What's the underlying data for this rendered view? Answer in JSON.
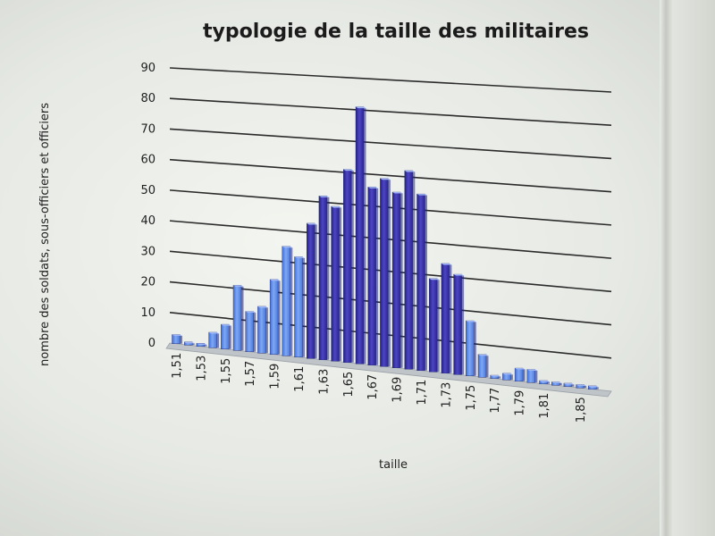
{
  "chart_data": {
    "type": "bar",
    "title": "typologie de la taille des militaires",
    "xlabel": "taille",
    "ylabel": "nombre des soldats, sous-officiers et officiers",
    "ylim": [
      0,
      90
    ],
    "yticks": [
      0,
      10,
      20,
      30,
      40,
      50,
      60,
      70,
      80,
      90
    ],
    "grid": true,
    "categories": [
      "1,51",
      "1,52",
      "1,53",
      "1,54",
      "1,55",
      "1,56",
      "1,57",
      "1,58",
      "1,59",
      "1,60",
      "1,61",
      "1,62",
      "1,63",
      "1,64",
      "1,65",
      "1,66",
      "1,67",
      "1,68",
      "1,69",
      "1,70",
      "1,71",
      "1,72",
      "1,73",
      "1,74",
      "1,75",
      "1,76",
      "1,77",
      "1,78",
      "1,79",
      "1,80",
      "1,81",
      "1,82",
      "1,83",
      "1,84",
      "1,85"
    ],
    "visible_tick_labels": [
      "1,51",
      "1,53",
      "1,55",
      "1,57",
      "1,59",
      "1,61",
      "1,63",
      "1,65",
      "1,67",
      "1,69",
      "1,71",
      "1,73",
      "1,75",
      "1,77",
      "1,79",
      "1,81",
      "1,85"
    ],
    "values": [
      3,
      1,
      1,
      5,
      8,
      21,
      13,
      15,
      24,
      35,
      32,
      43,
      52,
      49,
      61,
      81,
      56,
      59,
      55,
      62,
      55,
      29,
      34,
      31,
      17,
      7,
      1,
      2,
      4,
      4,
      1,
      1,
      1,
      1,
      1
    ]
  }
}
